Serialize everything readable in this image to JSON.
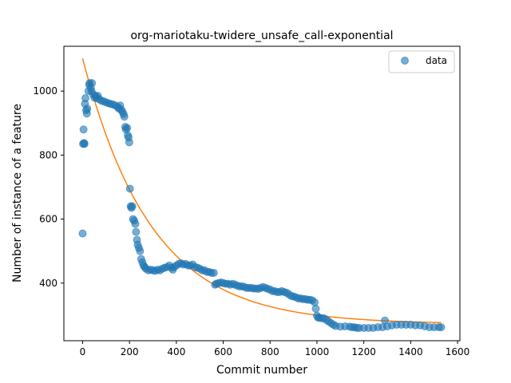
{
  "chart_data": {
    "type": "scatter",
    "title": "org-mariotaku-twidere_unsafe_call-exponential",
    "xlabel": "Commit number",
    "ylabel": "Number of instance of a feature",
    "xlim": [
      -80,
      1610
    ],
    "ylim": [
      220,
      1140
    ],
    "x_ticks": [
      0,
      200,
      400,
      600,
      800,
      1000,
      1200,
      1400,
      1600
    ],
    "y_ticks": [
      400,
      600,
      800,
      1000
    ],
    "grid": false,
    "legend": {
      "position": "top-right",
      "entries": [
        "data"
      ]
    },
    "colors": {
      "data": "#1f77b4",
      "fit": "#ff7f0e"
    },
    "series": [
      {
        "name": "data",
        "marker": "circle",
        "points": [
          [
            0,
            555
          ],
          [
            2,
            835
          ],
          [
            4,
            880
          ],
          [
            6,
            838
          ],
          [
            8,
            835
          ],
          [
            10,
            960
          ],
          [
            12,
            978
          ],
          [
            15,
            940
          ],
          [
            18,
            930
          ],
          [
            20,
            945
          ],
          [
            25,
            1000
          ],
          [
            28,
            1020
          ],
          [
            30,
            1025
          ],
          [
            35,
            1010
          ],
          [
            38,
            1000
          ],
          [
            40,
            1025
          ],
          [
            45,
            990
          ],
          [
            50,
            980
          ],
          [
            55,
            985
          ],
          [
            60,
            978
          ],
          [
            65,
            985
          ],
          [
            70,
            975
          ],
          [
            80,
            970
          ],
          [
            90,
            968
          ],
          [
            100,
            965
          ],
          [
            110,
            962
          ],
          [
            120,
            960
          ],
          [
            130,
            958
          ],
          [
            140,
            955
          ],
          [
            150,
            950
          ],
          [
            155,
            945
          ],
          [
            160,
            955
          ],
          [
            165,
            942
          ],
          [
            170,
            935
          ],
          [
            175,
            928
          ],
          [
            178,
            920
          ],
          [
            182,
            888
          ],
          [
            185,
            880
          ],
          [
            190,
            885
          ],
          [
            193,
            862
          ],
          [
            196,
            855
          ],
          [
            199,
            840
          ],
          [
            202,
            695
          ],
          [
            205,
            640
          ],
          [
            208,
            635
          ],
          [
            212,
            640
          ],
          [
            215,
            600
          ],
          [
            220,
            595
          ],
          [
            225,
            585
          ],
          [
            228,
            560
          ],
          [
            232,
            535
          ],
          [
            235,
            520
          ],
          [
            240,
            510
          ],
          [
            245,
            500
          ],
          [
            250,
            475
          ],
          [
            255,
            465
          ],
          [
            260,
            455
          ],
          [
            265,
            450
          ],
          [
            270,
            445
          ],
          [
            280,
            440
          ],
          [
            290,
            442
          ],
          [
            300,
            440
          ],
          [
            310,
            438
          ],
          [
            320,
            442
          ],
          [
            330,
            440
          ],
          [
            340,
            445
          ],
          [
            350,
            448
          ],
          [
            360,
            450
          ],
          [
            370,
            455
          ],
          [
            380,
            448
          ],
          [
            385,
            442
          ],
          [
            390,
            450
          ],
          [
            400,
            455
          ],
          [
            410,
            460
          ],
          [
            420,
            462
          ],
          [
            430,
            458
          ],
          [
            440,
            460
          ],
          [
            450,
            455
          ],
          [
            460,
            455
          ],
          [
            470,
            458
          ],
          [
            480,
            450
          ],
          [
            490,
            448
          ],
          [
            500,
            445
          ],
          [
            510,
            440
          ],
          [
            520,
            440
          ],
          [
            530,
            435
          ],
          [
            540,
            435
          ],
          [
            550,
            432
          ],
          [
            560,
            432
          ],
          [
            565,
            395
          ],
          [
            570,
            398
          ],
          [
            580,
            400
          ],
          [
            590,
            402
          ],
          [
            600,
            400
          ],
          [
            610,
            398
          ],
          [
            620,
            398
          ],
          [
            630,
            395
          ],
          [
            640,
            398
          ],
          [
            650,
            395
          ],
          [
            660,
            392
          ],
          [
            670,
            390
          ],
          [
            680,
            390
          ],
          [
            690,
            388
          ],
          [
            700,
            385
          ],
          [
            710,
            385
          ],
          [
            720,
            385
          ],
          [
            730,
            383
          ],
          [
            740,
            383
          ],
          [
            750,
            382
          ],
          [
            760,
            385
          ],
          [
            770,
            388
          ],
          [
            780,
            385
          ],
          [
            790,
            382
          ],
          [
            800,
            380
          ],
          [
            810,
            375
          ],
          [
            820,
            375
          ],
          [
            830,
            372
          ],
          [
            840,
            372
          ],
          [
            850,
            375
          ],
          [
            860,
            372
          ],
          [
            870,
            370
          ],
          [
            880,
            365
          ],
          [
            890,
            360
          ],
          [
            900,
            358
          ],
          [
            910,
            356
          ],
          [
            920,
            352
          ],
          [
            930,
            352
          ],
          [
            940,
            350
          ],
          [
            950,
            350
          ],
          [
            960,
            348
          ],
          [
            970,
            348
          ],
          [
            980,
            346
          ],
          [
            990,
            340
          ],
          [
            995,
            320
          ],
          [
            1000,
            298
          ],
          [
            1005,
            292
          ],
          [
            1010,
            292
          ],
          [
            1020,
            290
          ],
          [
            1030,
            290
          ],
          [
            1040,
            285
          ],
          [
            1050,
            280
          ],
          [
            1060,
            275
          ],
          [
            1070,
            270
          ],
          [
            1080,
            266
          ],
          [
            1100,
            264
          ],
          [
            1120,
            265
          ],
          [
            1140,
            264
          ],
          [
            1150,
            262
          ],
          [
            1160,
            262
          ],
          [
            1170,
            260
          ],
          [
            1180,
            260
          ],
          [
            1200,
            260
          ],
          [
            1220,
            260
          ],
          [
            1240,
            260
          ],
          [
            1260,
            262
          ],
          [
            1280,
            262
          ],
          [
            1290,
            283
          ],
          [
            1300,
            265
          ],
          [
            1320,
            268
          ],
          [
            1340,
            270
          ],
          [
            1360,
            270
          ],
          [
            1380,
            270
          ],
          [
            1400,
            270
          ],
          [
            1420,
            268
          ],
          [
            1440,
            268
          ],
          [
            1460,
            265
          ],
          [
            1480,
            262
          ],
          [
            1500,
            262
          ],
          [
            1520,
            262
          ],
          [
            1530,
            262
          ]
        ]
      },
      {
        "name": "fit",
        "marker": "line",
        "model": "exponential",
        "params": {
          "a": 830,
          "k": 0.0034,
          "c": 272
        },
        "x_range": [
          0,
          1530
        ]
      }
    ]
  }
}
